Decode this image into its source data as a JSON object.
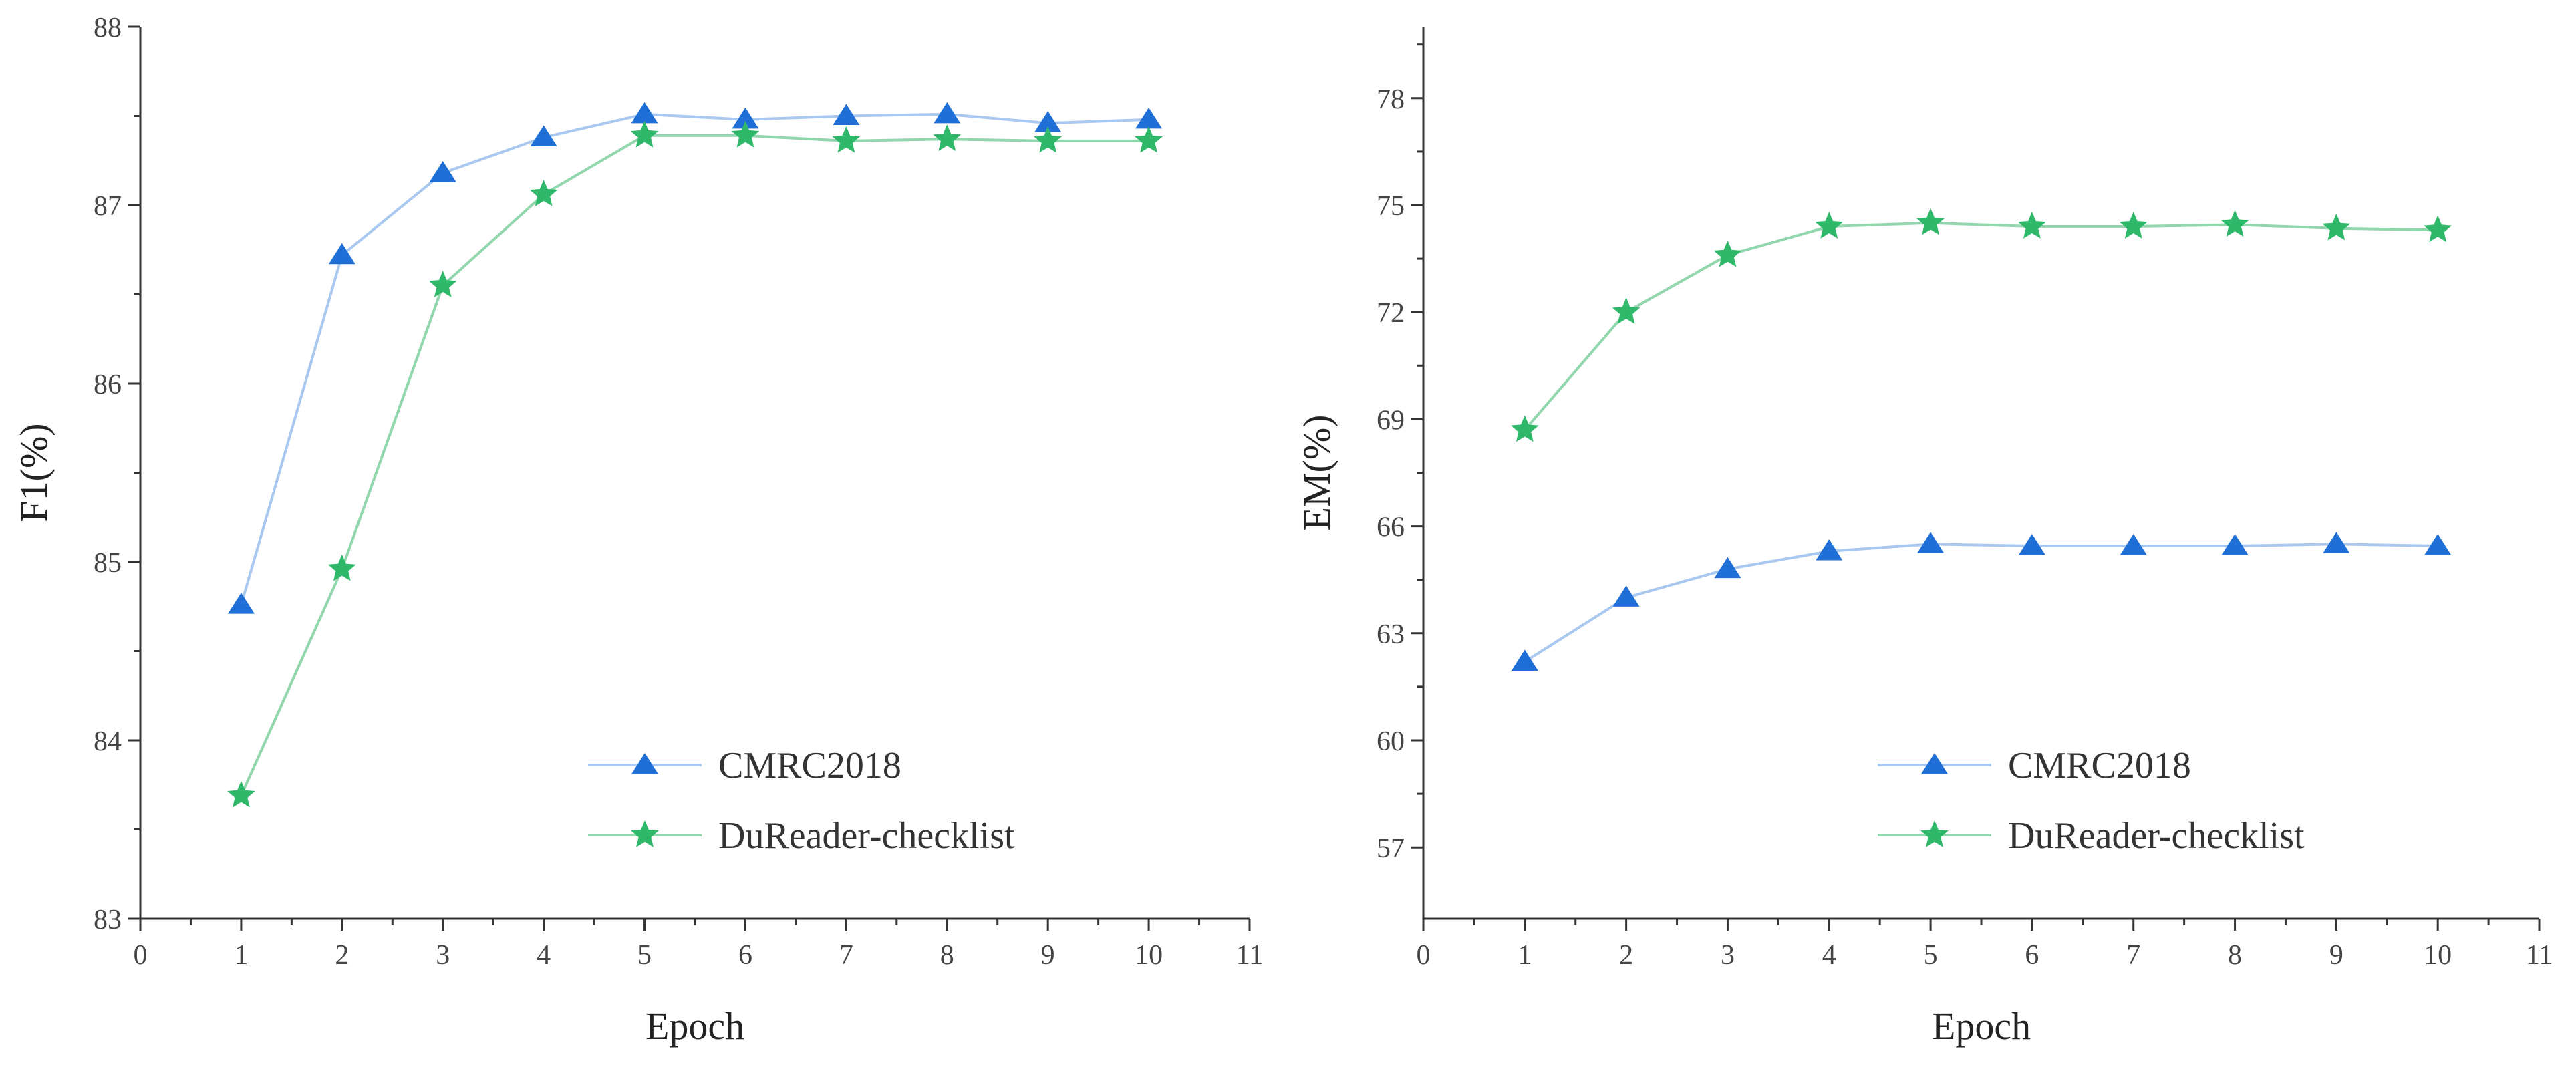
{
  "chart_data": [
    {
      "type": "line",
      "id": "f1",
      "xlabel": "Epoch",
      "ylabel": "F1(%)",
      "xlim": [
        0,
        11
      ],
      "ylim": [
        83,
        88
      ],
      "xticks": [
        0,
        1,
        2,
        3,
        4,
        5,
        6,
        7,
        8,
        9,
        10,
        11
      ],
      "yticks": [
        83,
        84,
        85,
        86,
        87,
        88
      ],
      "minor_xticks": [
        0.5,
        1.5,
        2.5,
        3.5,
        4.5,
        5.5,
        6.5,
        7.5,
        8.5,
        9.5,
        10.5
      ],
      "minor_yticks": [
        83.5,
        84.5,
        85.5,
        86.5,
        87.5
      ],
      "legend_position": "bottom-right",
      "x": [
        1,
        2,
        3,
        4,
        5,
        6,
        7,
        8,
        9,
        10
      ],
      "series": [
        {
          "name": "CMRC2018",
          "marker": "triangle",
          "line_color": "#a9c8ef",
          "marker_color": "#1f6fd6",
          "values": [
            84.76,
            86.72,
            87.18,
            87.38,
            87.51,
            87.48,
            87.5,
            87.51,
            87.46,
            87.48
          ]
        },
        {
          "name": "DuReader-checklist",
          "marker": "star",
          "line_color": "#92d6ad",
          "marker_color": "#2fb86a",
          "values": [
            83.69,
            84.96,
            86.55,
            87.06,
            87.39,
            87.39,
            87.36,
            87.37,
            87.36,
            87.36
          ]
        }
      ]
    },
    {
      "type": "line",
      "id": "em",
      "xlabel": "Epoch",
      "ylabel": "EM(%)",
      "xlim": [
        0,
        11
      ],
      "ylim": [
        55,
        80
      ],
      "xticks": [
        0,
        1,
        2,
        3,
        4,
        5,
        6,
        7,
        8,
        9,
        10,
        11
      ],
      "yticks": [
        57,
        60,
        63,
        66,
        69,
        72,
        75,
        78
      ],
      "minor_xticks": [
        0.5,
        1.5,
        2.5,
        3.5,
        4.5,
        5.5,
        6.5,
        7.5,
        8.5,
        9.5,
        10.5
      ],
      "minor_yticks": [
        58.5,
        61.5,
        64.5,
        67.5,
        70.5,
        73.5,
        76.5,
        79.5
      ],
      "legend_position": "bottom-right",
      "x": [
        1,
        2,
        3,
        4,
        5,
        6,
        7,
        8,
        9,
        10
      ],
      "series": [
        {
          "name": "CMRC2018",
          "marker": "triangle",
          "line_color": "#a9c8ef",
          "marker_color": "#1f6fd6",
          "values": [
            62.2,
            64.0,
            64.8,
            65.3,
            65.5,
            65.45,
            65.45,
            65.45,
            65.5,
            65.45
          ]
        },
        {
          "name": "DuReader-checklist",
          "marker": "star",
          "line_color": "#92d6ad",
          "marker_color": "#2fb86a",
          "values": [
            68.7,
            72.0,
            73.6,
            74.4,
            74.5,
            74.4,
            74.4,
            74.45,
            74.35,
            74.3
          ]
        }
      ]
    }
  ]
}
